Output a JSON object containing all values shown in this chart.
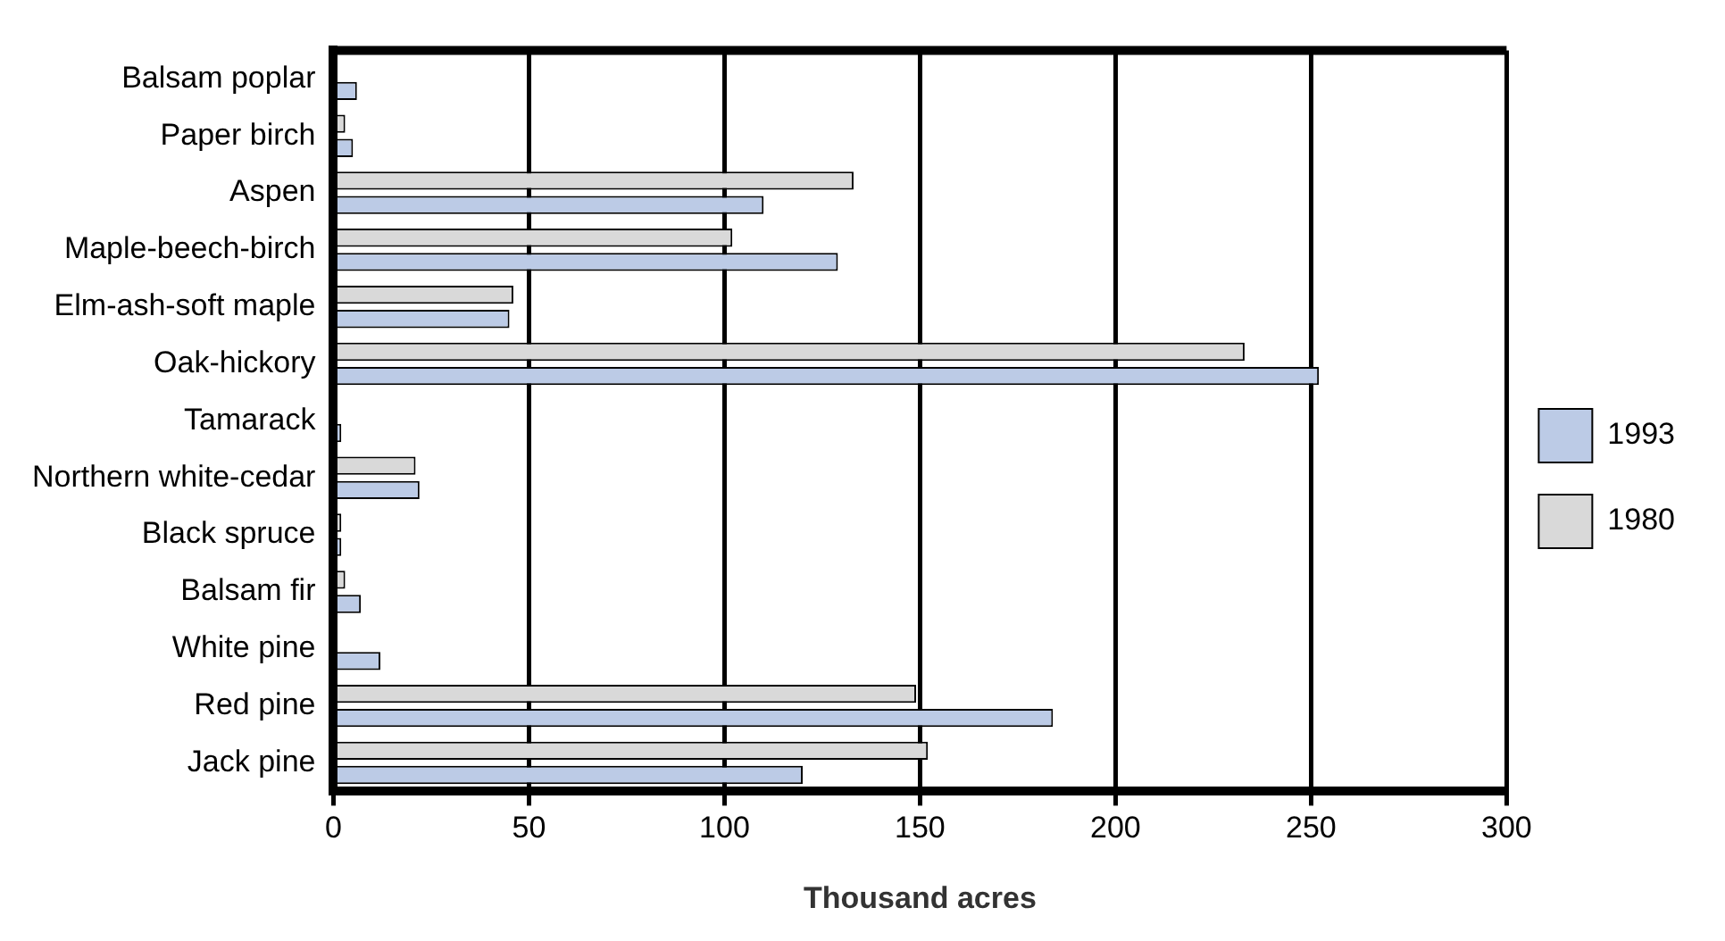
{
  "chart_data": {
    "type": "bar",
    "orientation": "horizontal",
    "xlabel": "Thousand acres",
    "categories": [
      "Balsam poplar",
      "Paper birch",
      "Aspen",
      "Maple-beech-birch",
      "Elm-ash-soft maple",
      "Oak-hickory",
      "Tamarack",
      "Northern white-cedar",
      "Black spruce",
      "Balsam fir",
      "White pine",
      "Red pine",
      "Jack pine"
    ],
    "series": [
      {
        "name": "1980",
        "color": "#d9d9d9",
        "values": [
          null,
          3,
          133,
          102,
          46,
          233,
          null,
          21,
          2,
          3,
          null,
          149,
          152
        ]
      },
      {
        "name": "1993",
        "color": "#bccbe6",
        "values": [
          6,
          5,
          110,
          129,
          45,
          252,
          2,
          22,
          2,
          7,
          12,
          184,
          120
        ]
      }
    ],
    "xlim": [
      0,
      300
    ],
    "xticks": [
      0,
      50,
      100,
      150,
      200,
      250,
      300
    ],
    "grid": "x",
    "legend": "right"
  }
}
